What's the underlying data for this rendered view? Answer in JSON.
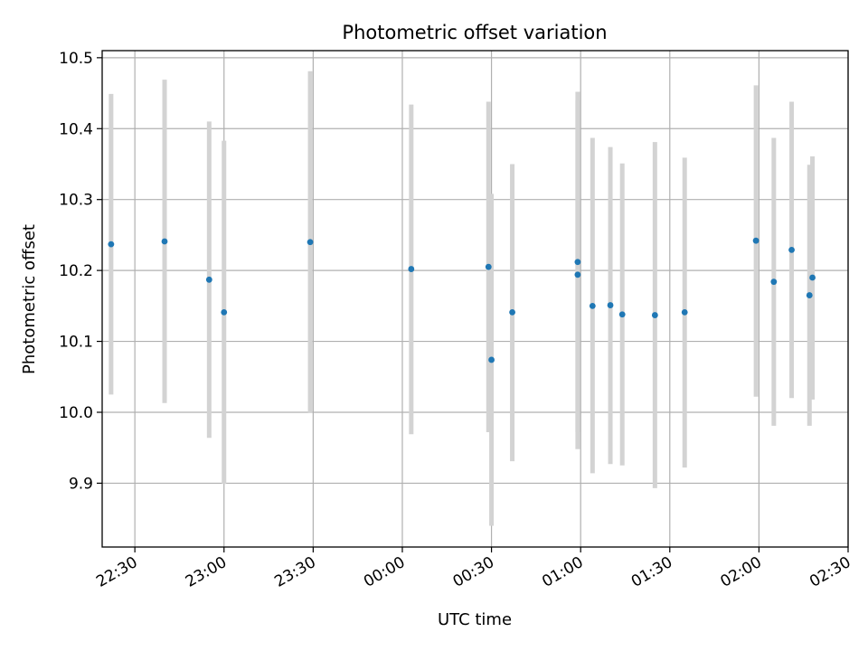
{
  "chart_data": {
    "type": "scatter",
    "title": "Photometric offset variation",
    "xlabel": "UTC time",
    "ylabel": "Photometric offset",
    "x_ticks": [
      "22:30",
      "23:00",
      "23:30",
      "00:00",
      "00:30",
      "01:00",
      "01:30",
      "02:00",
      "02:30"
    ],
    "y_ticks": [
      "9.9",
      "10.0",
      "10.1",
      "10.2",
      "10.3",
      "10.4",
      "10.5"
    ],
    "xlim": [
      "2000-01-01T22:19:00",
      "2000-01-02T02:30:00"
    ],
    "ylim": [
      9.81,
      10.51
    ],
    "grid": true,
    "marker_color": "#1f77b4",
    "errorbar_color": "#d3d3d3",
    "points": [
      {
        "x": "2000-01-01T22:22:00",
        "y": 10.237,
        "low": 10.025,
        "high": 10.449
      },
      {
        "x": "2000-01-01T22:40:00",
        "y": 10.241,
        "low": 10.013,
        "high": 10.469
      },
      {
        "x": "2000-01-01T22:55:00",
        "y": 10.187,
        "low": 9.964,
        "high": 10.41
      },
      {
        "x": "2000-01-01T23:00:00",
        "y": 10.141,
        "low": 9.899,
        "high": 10.383
      },
      {
        "x": "2000-01-01T23:29:00",
        "y": 10.24,
        "low": 9.999,
        "high": 10.481
      },
      {
        "x": "2000-01-02T00:03:00",
        "y": 10.202,
        "low": 9.969,
        "high": 10.434
      },
      {
        "x": "2000-01-02T00:29:00",
        "y": 10.205,
        "low": 9.972,
        "high": 10.438
      },
      {
        "x": "2000-01-02T00:30:00",
        "y": 10.074,
        "low": 9.84,
        "high": 10.308
      },
      {
        "x": "2000-01-02T00:37:00",
        "y": 10.141,
        "low": 9.931,
        "high": 10.35
      },
      {
        "x": "2000-01-02T00:59:00",
        "y": 10.212,
        "low": 9.972,
        "high": 10.452
      },
      {
        "x": "2000-01-02T00:59:00",
        "y": 10.194,
        "low": 9.948,
        "high": 10.44
      },
      {
        "x": "2000-01-02T01:04:00",
        "y": 10.15,
        "low": 9.914,
        "high": 10.387
      },
      {
        "x": "2000-01-02T01:10:00",
        "y": 10.151,
        "low": 9.927,
        "high": 10.374
      },
      {
        "x": "2000-01-02T01:14:00",
        "y": 10.138,
        "low": 9.925,
        "high": 10.351
      },
      {
        "x": "2000-01-02T01:25:00",
        "y": 10.137,
        "low": 9.893,
        "high": 10.381
      },
      {
        "x": "2000-01-02T01:35:00",
        "y": 10.141,
        "low": 9.922,
        "high": 10.359
      },
      {
        "x": "2000-01-02T01:59:00",
        "y": 10.242,
        "low": 10.022,
        "high": 10.461
      },
      {
        "x": "2000-01-02T02:05:00",
        "y": 10.184,
        "low": 9.981,
        "high": 10.387
      },
      {
        "x": "2000-01-02T02:11:00",
        "y": 10.229,
        "low": 10.02,
        "high": 10.438
      },
      {
        "x": "2000-01-02T02:17:00",
        "y": 10.165,
        "low": 9.981,
        "high": 10.349
      },
      {
        "x": "2000-01-02T02:18:00",
        "y": 10.19,
        "low": 10.018,
        "high": 10.361
      }
    ]
  }
}
